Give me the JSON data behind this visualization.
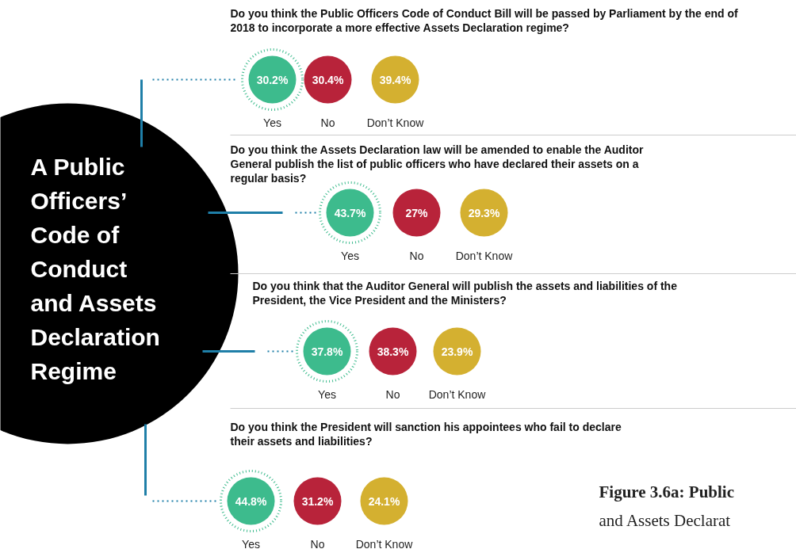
{
  "chart_data": [
    {
      "type": "other",
      "title": "A Public Officers’ Code of Conduct and Assets Declaration Regime",
      "annotations": [
        "Figure 3.6a: Public",
        "and Assets Declarat"
      ]
    },
    {
      "type": "other",
      "title": "Do you think the Public Officers Code of Conduct Bill will be passed by Parliament by the end of 2018 to incorporate a more effective Assets Declaration regime?",
      "categories": [
        "Yes",
        "No",
        "Don’t Know"
      ],
      "values": [
        30.2,
        30.4,
        39.4
      ],
      "value_labels": [
        "30.2%",
        "30.4%",
        "39.4%"
      ],
      "colors": [
        "#3dbb8d",
        "#b8233a",
        "#d4b030"
      ]
    },
    {
      "type": "other",
      "title": "Do you think the Assets Declaration law will be amended to enable the Auditor General publish the list of public officers who have declared their assets on a regular basis?",
      "categories": [
        "Yes",
        "No",
        "Don’t Know"
      ],
      "values": [
        43.7,
        27,
        29.3
      ],
      "value_labels": [
        "43.7%",
        "27%",
        "29.3%"
      ],
      "colors": [
        "#3dbb8d",
        "#b8233a",
        "#d4b030"
      ]
    },
    {
      "type": "other",
      "title": "Do you think that the Auditor General will publish the assets and liabilities of the President, the Vice President and the Ministers?",
      "categories": [
        "Yes",
        "No",
        "Don’t Know"
      ],
      "values": [
        37.8,
        38.3,
        23.9
      ],
      "value_labels": [
        "37.8%",
        "38.3%",
        "23.9%"
      ],
      "colors": [
        "#3dbb8d",
        "#b8233a",
        "#d4b030"
      ]
    },
    {
      "type": "other",
      "title": "Do you think the President will sanction his appointees who fail to declare their assets and liabilities?",
      "categories": [
        "Yes",
        "No",
        "Don’t Know"
      ],
      "values": [
        44.8,
        31.2,
        24.1
      ],
      "value_labels": [
        "44.8%",
        "31.2%",
        "24.1%"
      ],
      "colors": [
        "#3dbb8d",
        "#b8233a",
        "#d4b030"
      ]
    }
  ]
}
